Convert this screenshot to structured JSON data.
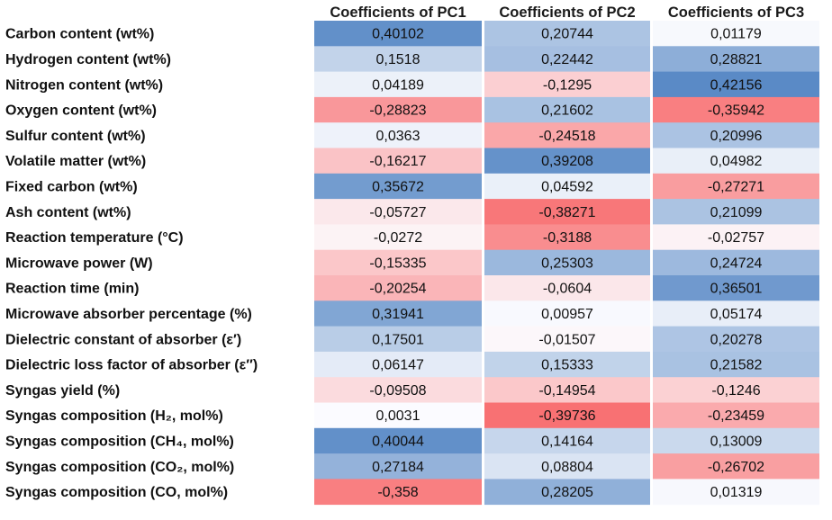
{
  "chart_data": {
    "type": "heatmap",
    "title": "",
    "columns": [
      "Coefficients of PC1",
      "Coefficients of PC2",
      "Coefficients of PC3"
    ],
    "rows": [
      {
        "label": "Carbon content (wt%)",
        "values": [
          0.40102,
          0.20744,
          0.01179
        ],
        "display": [
          "0,40102",
          "0,20744",
          "0,01179"
        ]
      },
      {
        "label": "Hydrogen content (wt%)",
        "values": [
          0.1518,
          0.22442,
          0.28821
        ],
        "display": [
          "0,1518",
          "0,22442",
          "0,28821"
        ]
      },
      {
        "label": "Nitrogen content (wt%)",
        "values": [
          0.04189,
          -0.1295,
          0.42156
        ],
        "display": [
          "0,04189",
          "-0,1295",
          "0,42156"
        ]
      },
      {
        "label": "Oxygen content (wt%)",
        "values": [
          -0.28823,
          0.21602,
          -0.35942
        ],
        "display": [
          "-0,28823",
          "0,21602",
          "-0,35942"
        ]
      },
      {
        "label": "Sulfur content (wt%)",
        "values": [
          0.0363,
          -0.24518,
          0.20996
        ],
        "display": [
          "0,0363",
          "-0,24518",
          "0,20996"
        ]
      },
      {
        "label": "Volatile matter (wt%)",
        "values": [
          -0.16217,
          0.39208,
          0.04982
        ],
        "display": [
          "-0,16217",
          "0,39208",
          "0,04982"
        ]
      },
      {
        "label": "Fixed carbon (wt%)",
        "values": [
          0.35672,
          0.04592,
          -0.27271
        ],
        "display": [
          "0,35672",
          "0,04592",
          "-0,27271"
        ]
      },
      {
        "label": "Ash content (wt%)",
        "values": [
          -0.05727,
          -0.38271,
          0.21099
        ],
        "display": [
          "-0,05727",
          "-0,38271",
          "0,21099"
        ]
      },
      {
        "label": "Reaction temperature (°C)",
        "values": [
          -0.0272,
          -0.3188,
          -0.02757
        ],
        "display": [
          "-0,0272",
          "-0,3188",
          "-0,02757"
        ]
      },
      {
        "label": "Microwave power (W)",
        "values": [
          -0.15335,
          0.25303,
          0.24724
        ],
        "display": [
          "-0,15335",
          "0,25303",
          "0,24724"
        ]
      },
      {
        "label": "Reaction time (min)",
        "values": [
          -0.20254,
          -0.0604,
          0.36501
        ],
        "display": [
          "-0,20254",
          "-0,0604",
          "0,36501"
        ]
      },
      {
        "label": "Microwave absorber percentage (%)",
        "values": [
          0.31941,
          0.00957,
          0.05174
        ],
        "display": [
          "0,31941",
          "0,00957",
          "0,05174"
        ]
      },
      {
        "label": "Dielectric constant of absorber (ε′)",
        "values": [
          0.17501,
          -0.01507,
          0.20278
        ],
        "display": [
          "0,17501",
          "-0,01507",
          "0,20278"
        ]
      },
      {
        "label": "Dielectric loss factor of absorber (ε″)",
        "values": [
          0.06147,
          0.15333,
          0.21582
        ],
        "display": [
          "0,06147",
          "0,15333",
          "0,21582"
        ]
      },
      {
        "label": "Syngas yield (%)",
        "values": [
          -0.09508,
          -0.14954,
          -0.1246
        ],
        "display": [
          "-0,09508",
          "-0,14954",
          "-0,1246"
        ]
      },
      {
        "label": "Syngas composition (H₂, mol%)",
        "values": [
          0.0031,
          -0.39736,
          -0.23459
        ],
        "display": [
          "0,0031",
          "-0,39736",
          "-0,23459"
        ]
      },
      {
        "label": "Syngas composition (CH₄, mol%)",
        "values": [
          0.40044,
          0.14164,
          0.13009
        ],
        "display": [
          "0,40044",
          "0,14164",
          "0,13009"
        ]
      },
      {
        "label": "Syngas composition (CO₂, mol%)",
        "values": [
          0.27184,
          0.08804,
          -0.26702
        ],
        "display": [
          "0,27184",
          "0,08804",
          "-0,26702"
        ]
      },
      {
        "label": "Syngas composition (CO, mol%)",
        "values": [
          -0.358,
          0.28205,
          0.01319
        ],
        "display": [
          "-0,358",
          "0,28205",
          "0,01319"
        ]
      }
    ],
    "color_scale": {
      "negative": "#f8696b",
      "neutral": "#fcfcff",
      "positive": "#5a8ac6"
    },
    "grid": false,
    "legend": "none"
  }
}
